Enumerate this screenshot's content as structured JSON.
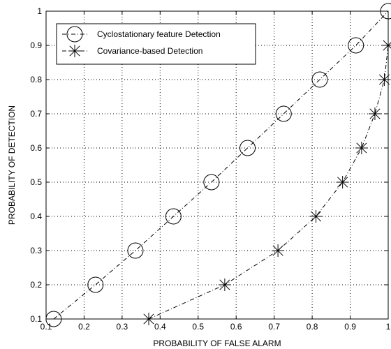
{
  "chart_data": {
    "type": "line",
    "title": "",
    "xlabel": "PROBABILITY OF FALSE ALARM",
    "ylabel": "PROBABILITY OF DETECTION",
    "xlim": [
      0.1,
      1.0
    ],
    "ylim": [
      0.1,
      1.0
    ],
    "x_ticks": [
      "0.1",
      "0.2",
      "0.3",
      "0.4",
      "0.5",
      "0.6",
      "0.7",
      "0.8",
      "0.9",
      "1"
    ],
    "y_ticks": [
      "0.1",
      "0.2",
      "0.3",
      "0.4",
      "0.5",
      "0.6",
      "0.7",
      "0.8",
      "0.9",
      "1"
    ],
    "grid": true,
    "legend_position": "top-left",
    "series": [
      {
        "name": "Cyclostationary feature Detection",
        "marker": "circle",
        "line_style": "dash-dot",
        "color": "#000000",
        "x": [
          0.12,
          0.23,
          0.335,
          0.435,
          0.535,
          0.63,
          0.725,
          0.82,
          0.915,
          1.0
        ],
        "y": [
          0.1,
          0.2,
          0.3,
          0.4,
          0.5,
          0.6,
          0.7,
          0.8,
          0.9,
          1.0
        ]
      },
      {
        "name": "Covariance-based Detection",
        "marker": "asterisk",
        "line_style": "dash-dot",
        "color": "#000000",
        "x": [
          0.37,
          0.57,
          0.71,
          0.81,
          0.88,
          0.93,
          0.965,
          0.99,
          1.0
        ],
        "y": [
          0.1,
          0.2,
          0.3,
          0.4,
          0.5,
          0.6,
          0.7,
          0.8,
          0.9
        ]
      }
    ]
  }
}
